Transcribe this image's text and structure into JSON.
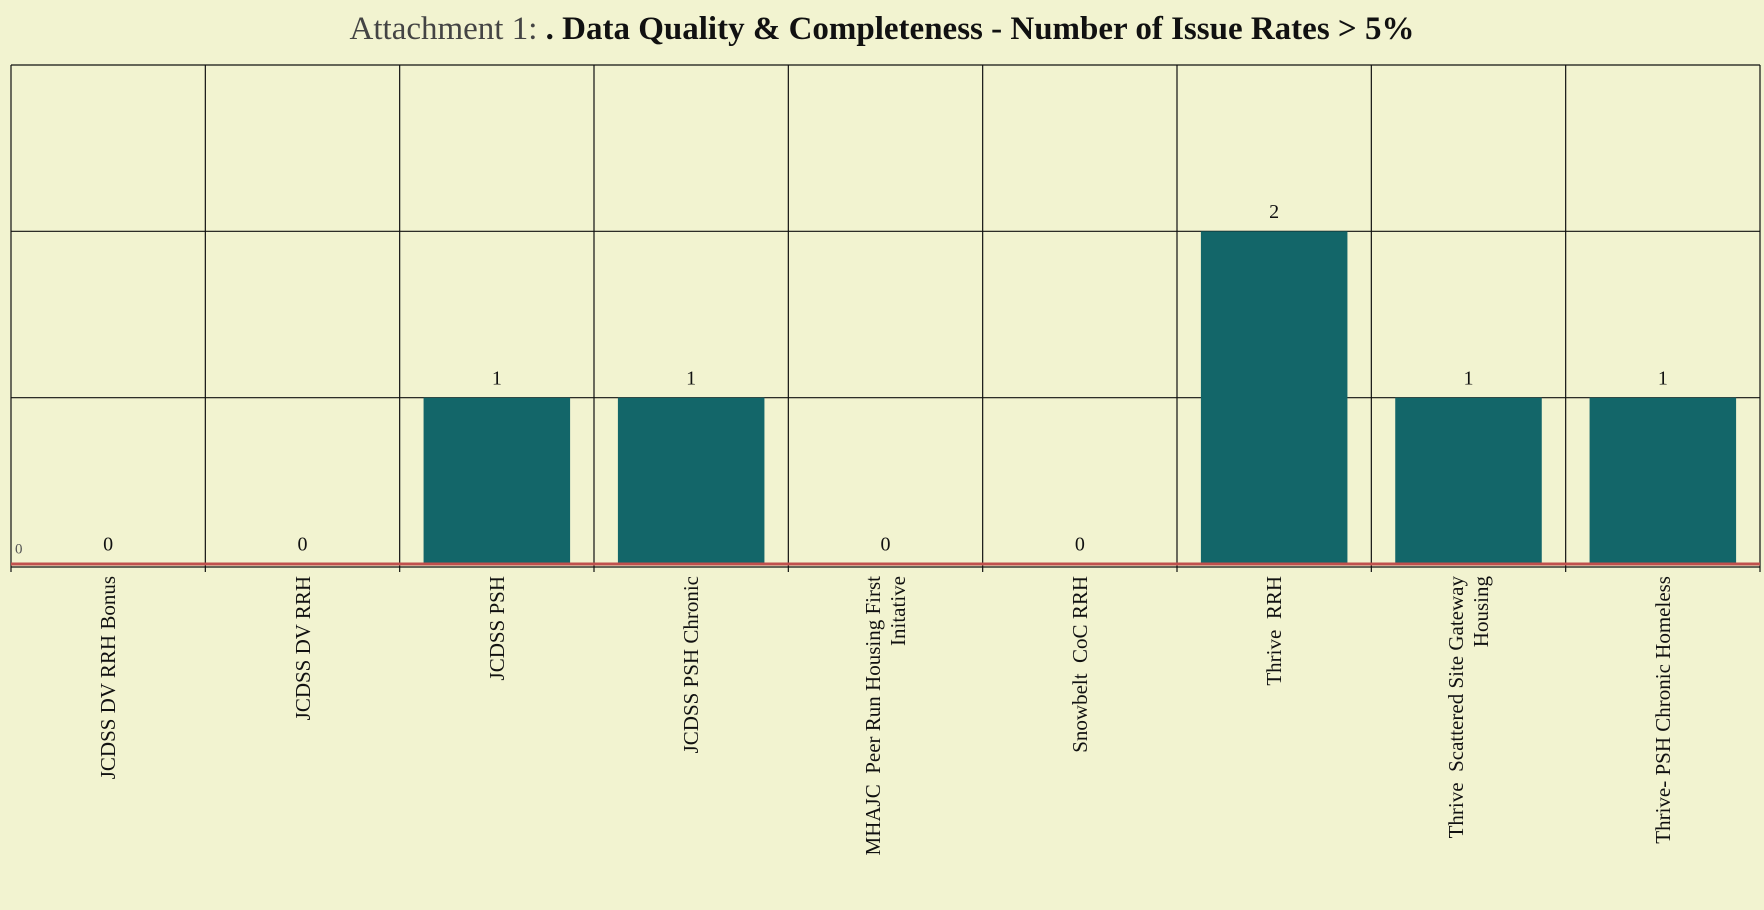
{
  "chart_data": {
    "type": "bar",
    "title_prefix": "Attachment 1: ",
    "title": ". Data Quality & Completeness - Number of Issue Rates > 5%",
    "categories": [
      "JCDSS DV RRH Bonus",
      "JCDSS DV RRH",
      "JCDSS PSH",
      "JCDSS PSH Chronic",
      "MHAJC  Peer Run Housing First Initative",
      "Snowbelt  CoC RRH",
      "Thrive  RRH",
      "Thrive  Scattered Site Gateway Housing",
      "Thrive- PSH Chronic Homeless"
    ],
    "values": [
      0,
      0,
      1,
      1,
      0,
      0,
      2,
      1,
      1
    ],
    "color": "#136669",
    "ylim": [
      0,
      3
    ],
    "yticks": [
      0,
      1,
      2,
      3
    ],
    "grid": true
  }
}
